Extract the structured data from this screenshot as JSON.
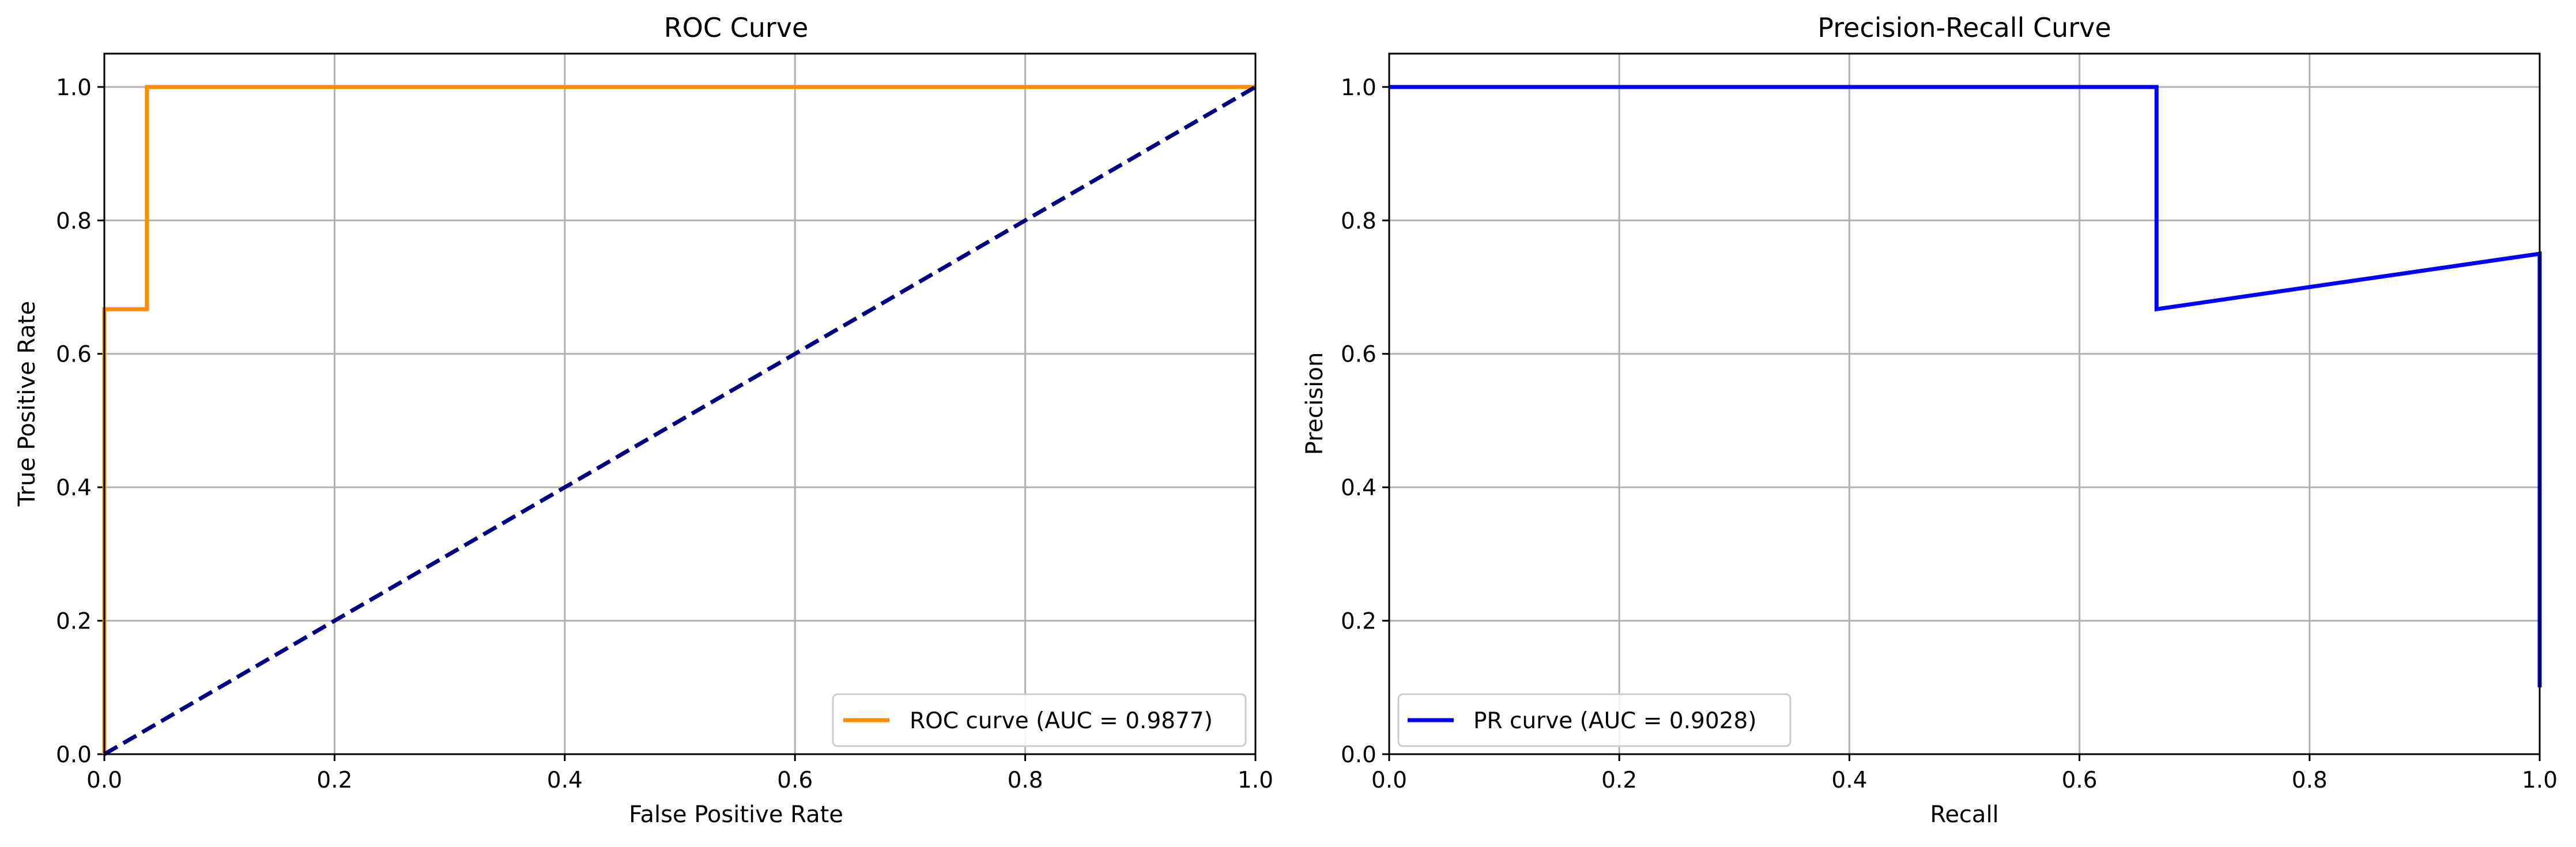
{
  "chart_data": [
    {
      "type": "line",
      "title": "ROC Curve",
      "xlabel": "False Positive Rate",
      "ylabel": "True Positive Rate",
      "xlim": [
        0,
        1
      ],
      "ylim": [
        0,
        1.05
      ],
      "xticks": [
        "0.0",
        "0.2",
        "0.4",
        "0.6",
        "0.8",
        "1.0"
      ],
      "yticks": [
        "0.0",
        "0.2",
        "0.4",
        "0.6",
        "0.8",
        "1.0"
      ],
      "grid": true,
      "legend_position": "lower-right",
      "series": [
        {
          "name": "ROC curve (AUC = 0.9877)",
          "color": "#ff8c00",
          "style": "solid",
          "points": [
            [
              0,
              0
            ],
            [
              0,
              0.667
            ],
            [
              0.037,
              0.667
            ],
            [
              0.037,
              1.0
            ],
            [
              1.0,
              1.0
            ]
          ]
        },
        {
          "color": "#000080",
          "style": "dashed",
          "points": [
            [
              0,
              0
            ],
            [
              1,
              1
            ]
          ]
        }
      ]
    },
    {
      "type": "line",
      "title": "Precision-Recall Curve",
      "xlabel": "Recall",
      "ylabel": "Precision",
      "xlim": [
        0,
        1
      ],
      "ylim": [
        0,
        1.05
      ],
      "xticks": [
        "0.0",
        "0.2",
        "0.4",
        "0.6",
        "0.8",
        "1.0"
      ],
      "yticks": [
        "0.0",
        "0.2",
        "0.4",
        "0.6",
        "0.8",
        "1.0"
      ],
      "grid": true,
      "legend_position": "lower-left",
      "series": [
        {
          "name": "PR curve (AUC = 0.9028)",
          "color": "#0000ff",
          "style": "solid",
          "points": [
            [
              0,
              1.0
            ],
            [
              0.667,
              1.0
            ],
            [
              0.667,
              0.667
            ],
            [
              1.0,
              0.75
            ],
            [
              1.0,
              0.1
            ]
          ]
        }
      ]
    }
  ]
}
